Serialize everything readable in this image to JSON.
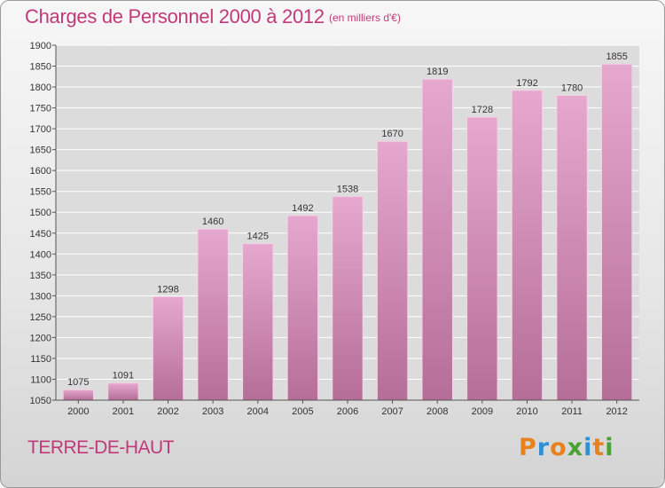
{
  "header": {
    "title": "Charges de Personnel 2000 à 2012",
    "subtitle": "(en milliers d'€)"
  },
  "footer": {
    "location": "TERRE-DE-HAUT",
    "logo": "Proxiti",
    "logo_colors": [
      "#e8821e",
      "#2f8fd1",
      "#e8821e",
      "#4aa233",
      "#2f8fd1",
      "#e8821e",
      "#4aa233"
    ]
  },
  "colors": {
    "text_accent": "#c03a7a",
    "bar_top": "#e6a8cf",
    "bar_bottom": "#b56e97",
    "grid": "#ffffff",
    "plot_background": "#dcdcdc"
  },
  "chart_data": {
    "type": "bar",
    "title": "Charges de Personnel 2000 à 2012",
    "subtitle": "(en milliers d'€)",
    "categories": [
      "2000",
      "2001",
      "2002",
      "2003",
      "2004",
      "2005",
      "2006",
      "2007",
      "2008",
      "2009",
      "2010",
      "2011",
      "2012"
    ],
    "values": [
      1075,
      1091,
      1298,
      1460,
      1425,
      1492,
      1538,
      1670,
      1819,
      1728,
      1792,
      1780,
      1855
    ],
    "xlabel": "",
    "ylabel": "",
    "ylim": [
      1050,
      1900
    ],
    "yticks": [
      1050,
      1100,
      1150,
      1200,
      1250,
      1300,
      1350,
      1400,
      1450,
      1500,
      1550,
      1600,
      1650,
      1700,
      1750,
      1800,
      1850,
      1900
    ],
    "grid": true,
    "data_labels": true
  }
}
